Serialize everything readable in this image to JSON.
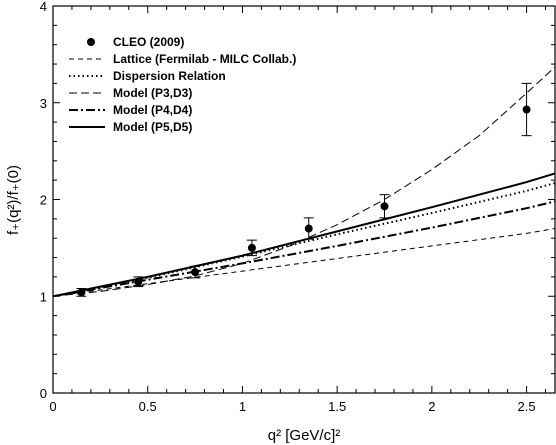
{
  "chart_data": {
    "type": "line",
    "xlabel": "q² [GeV/c]²",
    "ylabel": "f₊(q²)/f₊(0)",
    "xlim": [
      0,
      2.65
    ],
    "ylim": [
      0,
      4
    ],
    "x_ticks": [
      "0",
      "0.5",
      "1",
      "1.5",
      "2",
      "2.5"
    ],
    "y_ticks": [
      "0",
      "1",
      "2",
      "3",
      "4"
    ],
    "legend_position": "top-left",
    "grid": false,
    "series": [
      {
        "name": "CLEO (2009)",
        "style": "points",
        "x": [
          0.15,
          0.45,
          0.75,
          1.05,
          1.35,
          1.75,
          2.5
        ],
        "y": [
          1.04,
          1.15,
          1.25,
          1.5,
          1.7,
          1.93,
          2.93
        ],
        "err": [
          0.04,
          0.05,
          0.06,
          0.08,
          0.11,
          0.12,
          0.27
        ]
      },
      {
        "name": "Lattice (Fermilab - MILC Collab.)",
        "style": "dashed-short",
        "x": [
          0,
          0.5,
          1.0,
          1.5,
          2.0,
          2.5,
          2.65
        ],
        "y": [
          1.0,
          1.13,
          1.26,
          1.39,
          1.52,
          1.65,
          1.7
        ]
      },
      {
        "name": "Dispersion Relation",
        "style": "dotted",
        "x": [
          0,
          0.5,
          1.0,
          1.5,
          2.0,
          2.5,
          2.65
        ],
        "y": [
          1.0,
          1.19,
          1.41,
          1.64,
          1.86,
          2.09,
          2.17
        ]
      },
      {
        "name": "Model (P3,D3)",
        "style": "dashed-long",
        "x": [
          0,
          0.25,
          0.5,
          0.75,
          1.0,
          1.25,
          1.5,
          1.75,
          2.0,
          2.25,
          2.5,
          2.65
        ],
        "y": [
          1.0,
          1.05,
          1.12,
          1.21,
          1.34,
          1.52,
          1.74,
          2.0,
          2.31,
          2.66,
          3.1,
          3.37
        ]
      },
      {
        "name": "Model (P4,D4)",
        "style": "dash-dot",
        "x": [
          0,
          0.5,
          1.0,
          1.5,
          2.0,
          2.5,
          2.65
        ],
        "y": [
          1.0,
          1.17,
          1.34,
          1.52,
          1.71,
          1.91,
          1.98
        ]
      },
      {
        "name": "Model (P5,D5)",
        "style": "solid",
        "x": [
          0,
          0.5,
          1.0,
          1.5,
          2.0,
          2.5,
          2.65
        ],
        "y": [
          1.0,
          1.2,
          1.42,
          1.67,
          1.92,
          2.18,
          2.27
        ]
      }
    ]
  }
}
